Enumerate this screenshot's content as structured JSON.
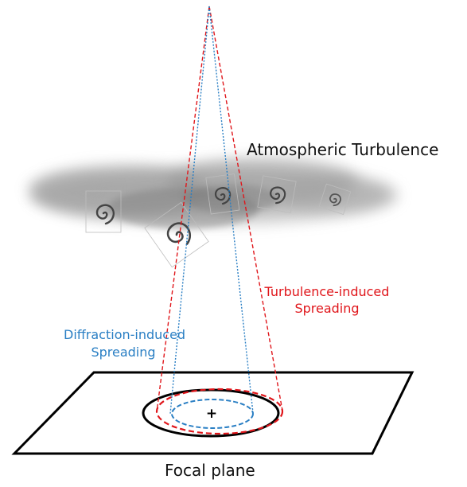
{
  "labels": {
    "atmospheric_turbulence": "Atmospheric Turbulence",
    "focal_plane": "Focal plane",
    "turbulence_spreading": {
      "line1": "Turbulence-induced",
      "line2": "Spreading"
    },
    "diffraction_spreading": {
      "line1": "Diffraction-induced",
      "line2": "Spreading"
    }
  },
  "center_marker": "+",
  "colors": {
    "turbulence": "#e0161b",
    "diffraction": "#2a7fc4",
    "outline": "#000000",
    "text": "#111111"
  }
}
